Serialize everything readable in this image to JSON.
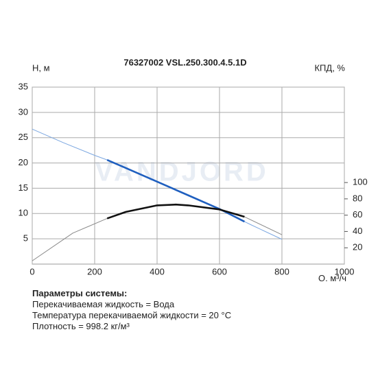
{
  "chart_data": {
    "type": "line",
    "title": "76327002 VSL.250.300.4.5.1D",
    "y_label": "H, м",
    "y2_label": "КПД, %",
    "x_label": "Q, м³/ч",
    "watermark": "VANDJORD",
    "xlim": [
      0,
      1000
    ],
    "xticks": [
      0,
      200,
      400,
      600,
      800,
      1000
    ],
    "ylim": [
      0,
      35
    ],
    "yticks": [
      5,
      10,
      15,
      20,
      25,
      30,
      35
    ],
    "y2lim": [
      0,
      217
    ],
    "y2ticks": [
      20,
      40,
      60,
      80,
      100
    ],
    "grid": true,
    "operating_range": [
      240,
      680
    ],
    "series": [
      {
        "color": "#1f5fbf",
        "thin_color": "#7aa6e0",
        "axis": "y",
        "x": [
          0,
          100,
          200,
          240,
          300,
          400,
          500,
          600,
          680,
          700,
          800
        ],
        "values": [
          26.7,
          24.0,
          21.5,
          20.6,
          19.0,
          16.3,
          13.6,
          10.9,
          8.4,
          7.8,
          4.9
        ]
      },
      {
        "color": "#111111",
        "thin_color": "#888888",
        "axis": "y2",
        "x": [
          0,
          130,
          240,
          300,
          400,
          460,
          500,
          600,
          680,
          800
        ],
        "values": [
          4,
          38,
          56,
          64,
          72,
          73,
          72,
          67,
          58,
          36
        ]
      }
    ]
  },
  "notes": {
    "title": "Параметры системы:",
    "lines": [
      "Перекачиваемая жидкость = Вода",
      "Температура перекачиваемой жидкости = 20 °C",
      "Плотность = 998.2 кг/м³"
    ]
  }
}
